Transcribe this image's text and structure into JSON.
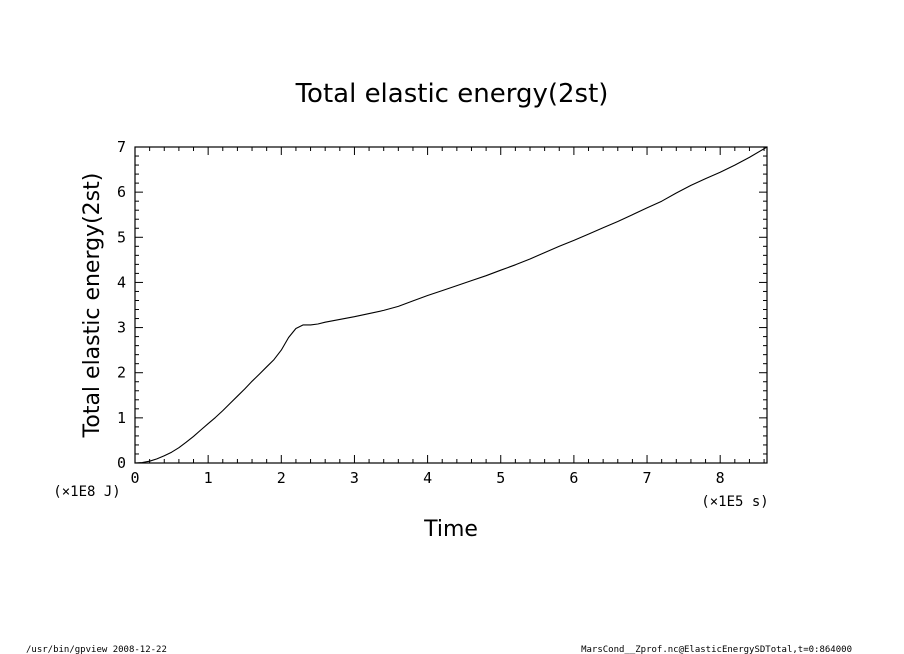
{
  "chart_data": {
    "type": "line",
    "title": "Total elastic energy(2st)",
    "xlabel": "Time",
    "ylabel": "Total elastic energy(2st)",
    "x_unit": "(×1E5 s)",
    "y_unit": "(×1E8 J)",
    "xlim": [
      0,
      8.64
    ],
    "ylim": [
      0,
      7
    ],
    "x_ticks": [
      "0",
      "1",
      "2",
      "3",
      "4",
      "5",
      "6",
      "7",
      "8"
    ],
    "y_ticks": [
      "0",
      "1",
      "2",
      "3",
      "4",
      "5",
      "6",
      "7"
    ],
    "series": [
      {
        "x": [
          0,
          0.1,
          0.2,
          0.3,
          0.4,
          0.5,
          0.6,
          0.7,
          0.8,
          0.9,
          1.0,
          1.1,
          1.2,
          1.3,
          1.4,
          1.5,
          1.6,
          1.7,
          1.8,
          1.9,
          2.0,
          2.1,
          2.2,
          2.3,
          2.4,
          2.5,
          2.6,
          2.8,
          3.0,
          3.2,
          3.4,
          3.6,
          3.8,
          4.0,
          4.2,
          4.4,
          4.6,
          4.8,
          5.0,
          5.2,
          5.4,
          5.6,
          5.8,
          6.0,
          6.2,
          6.4,
          6.6,
          6.8,
          7.0,
          7.2,
          7.4,
          7.6,
          7.8,
          8.0,
          8.2,
          8.4,
          8.64
        ],
        "y": [
          0,
          0.01,
          0.04,
          0.09,
          0.16,
          0.24,
          0.34,
          0.46,
          0.59,
          0.73,
          0.87,
          1.01,
          1.16,
          1.32,
          1.48,
          1.64,
          1.81,
          1.97,
          2.13,
          2.29,
          2.5,
          2.78,
          2.98,
          3.06,
          3.06,
          3.08,
          3.12,
          3.18,
          3.24,
          3.31,
          3.38,
          3.47,
          3.59,
          3.71,
          3.82,
          3.93,
          4.04,
          4.15,
          4.27,
          4.39,
          4.52,
          4.66,
          4.8,
          4.93,
          5.07,
          5.21,
          5.35,
          5.5,
          5.65,
          5.8,
          5.98,
          6.15,
          6.3,
          6.44,
          6.6,
          6.77,
          7.0
        ]
      }
    ]
  },
  "footer": {
    "left": "/usr/bin/gpview   2008-12-22",
    "right": "MarsCond__Zprof.nc@ElasticEnergySDTotal,t=0:864000"
  }
}
